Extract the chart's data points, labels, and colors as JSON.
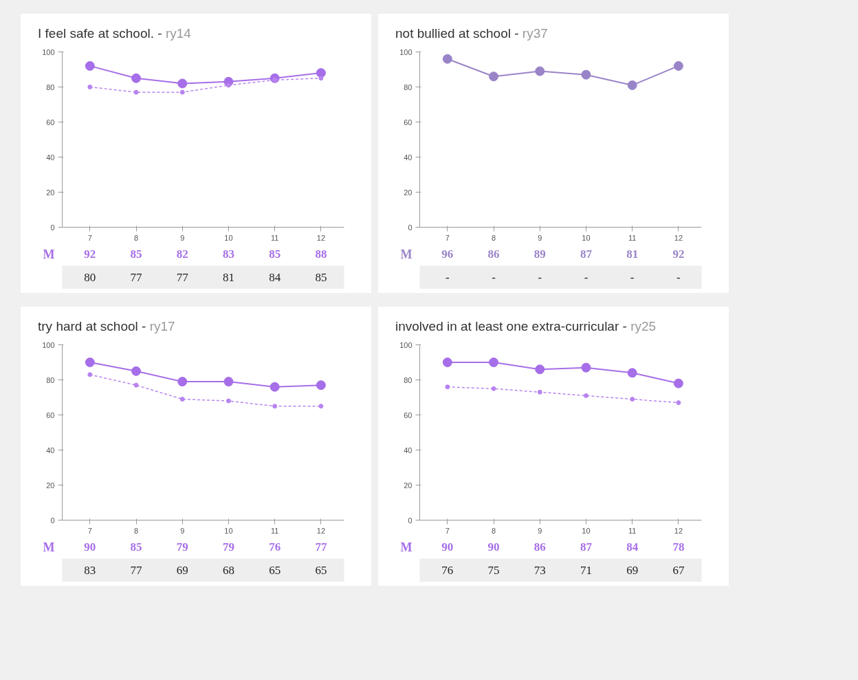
{
  "chart_data": [
    {
      "type": "line",
      "title": "I feel safe at school. -",
      "subtitle": "ry14",
      "categories": [
        "7",
        "8",
        "9",
        "10",
        "11",
        "12"
      ],
      "ylim": [
        0,
        100
      ],
      "yticks": [
        0,
        20,
        40,
        60,
        80,
        100
      ],
      "data_labels": true,
      "series": [
        {
          "name": "M",
          "color": "#a66ee8",
          "values": [
            92,
            85,
            82,
            83,
            85,
            88
          ],
          "marker": "circle",
          "line_style": "solid"
        },
        {
          "color": "#b883f0",
          "values": [
            80,
            77,
            77,
            81,
            84,
            85
          ],
          "marker": "circle",
          "line_style": "dashed"
        }
      ]
    },
    {
      "type": "line",
      "title": "not bullied at school -",
      "subtitle": "ry37",
      "categories": [
        "7",
        "8",
        "9",
        "10",
        "11",
        "12"
      ],
      "ylim": [
        0,
        100
      ],
      "yticks": [
        0,
        20,
        40,
        60,
        80,
        100
      ],
      "data_labels": true,
      "series": [
        {
          "name": "M",
          "color": "#9a84c8",
          "values": [
            96,
            86,
            89,
            87,
            81,
            92
          ],
          "marker": "circle",
          "line_style": "solid"
        },
        {
          "values": [
            null,
            null,
            null,
            null,
            null,
            null
          ],
          "value_labels": [
            "-",
            "-",
            "-",
            "-",
            "-",
            "-"
          ]
        }
      ]
    },
    {
      "type": "line",
      "title": "try hard at school -",
      "subtitle": "ry17",
      "categories": [
        "7",
        "8",
        "9",
        "10",
        "11",
        "12"
      ],
      "ylim": [
        0,
        100
      ],
      "yticks": [
        0,
        20,
        40,
        60,
        80,
        100
      ],
      "data_labels": true,
      "series": [
        {
          "name": "M",
          "color": "#a66ee8",
          "values": [
            90,
            85,
            79,
            79,
            76,
            77
          ],
          "marker": "circle",
          "line_style": "solid"
        },
        {
          "color": "#b883f0",
          "values": [
            83,
            77,
            69,
            68,
            65,
            65
          ],
          "marker": "circle",
          "line_style": "dashed"
        }
      ]
    },
    {
      "type": "line",
      "title": "involved in at least one extra-curricular -",
      "subtitle": "ry25",
      "categories": [
        "7",
        "8",
        "9",
        "10",
        "11",
        "12"
      ],
      "ylim": [
        0,
        100
      ],
      "yticks": [
        0,
        20,
        40,
        60,
        80,
        100
      ],
      "data_labels": true,
      "series": [
        {
          "name": "M",
          "color": "#a66ee8",
          "values": [
            90,
            90,
            86,
            87,
            84,
            78
          ],
          "marker": "circle",
          "line_style": "solid"
        },
        {
          "color": "#b883f0",
          "values": [
            76,
            75,
            73,
            71,
            69,
            67
          ],
          "marker": "circle",
          "line_style": "dashed"
        }
      ]
    }
  ]
}
